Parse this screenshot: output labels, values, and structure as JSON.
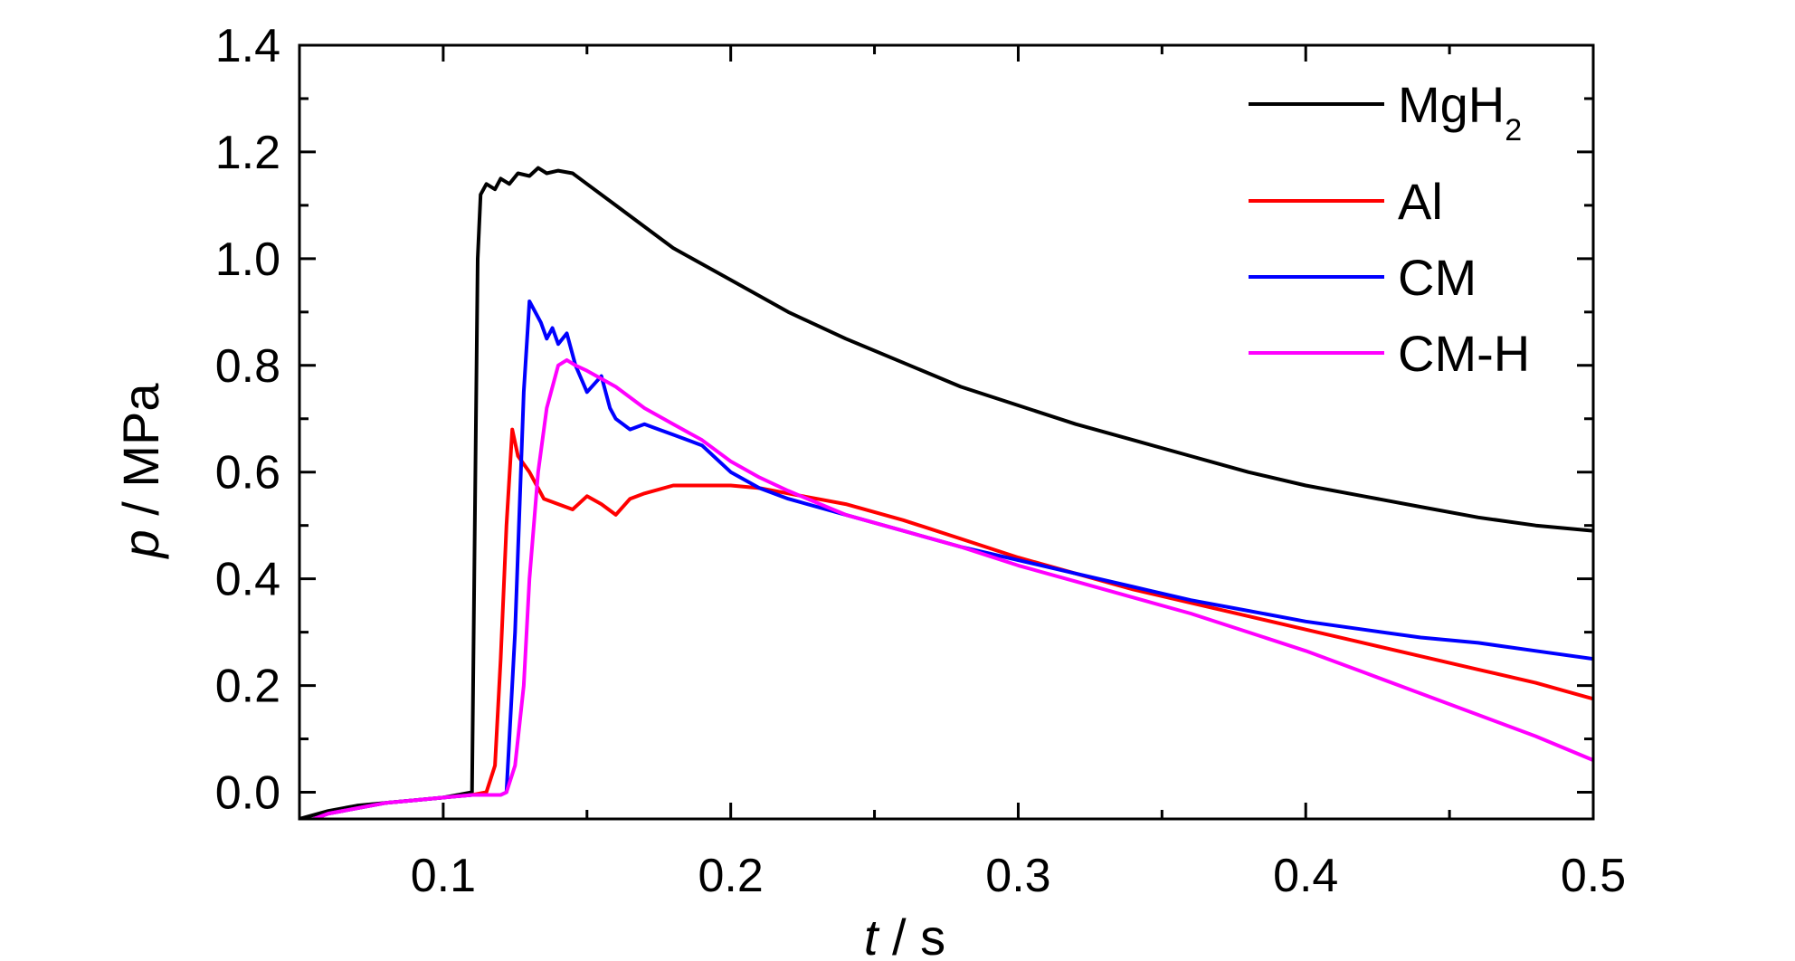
{
  "chart_data": {
    "type": "line",
    "title": "",
    "xlabel": {
      "var": "t",
      "unit": " / s"
    },
    "ylabel": {
      "var": "p",
      "unit": " / MPa"
    },
    "xlim": [
      0.05,
      0.5
    ],
    "ylim": [
      -0.05,
      1.4
    ],
    "xticks": [
      "0.1",
      "0.2",
      "0.3",
      "0.4",
      "0.5"
    ],
    "yticks": [
      "0.0",
      "0.2",
      "0.4",
      "0.6",
      "0.8",
      "1.0",
      "1.2",
      "1.4"
    ],
    "grid": false,
    "legend_position": "top-right",
    "series": [
      {
        "name": "MgH",
        "name_sub": "2",
        "color": "#000000",
        "x": [
          0.05,
          0.06,
          0.07,
          0.08,
          0.09,
          0.1,
          0.105,
          0.11,
          0.111,
          0.112,
          0.113,
          0.115,
          0.118,
          0.12,
          0.123,
          0.126,
          0.13,
          0.133,
          0.136,
          0.14,
          0.145,
          0.15,
          0.16,
          0.17,
          0.18,
          0.19,
          0.2,
          0.22,
          0.24,
          0.26,
          0.28,
          0.3,
          0.32,
          0.34,
          0.36,
          0.38,
          0.4,
          0.42,
          0.44,
          0.46,
          0.48,
          0.5
        ],
        "y": [
          -0.05,
          -0.035,
          -0.025,
          -0.02,
          -0.015,
          -0.01,
          -0.005,
          0.0,
          0.5,
          1.0,
          1.12,
          1.14,
          1.13,
          1.15,
          1.14,
          1.16,
          1.155,
          1.17,
          1.16,
          1.165,
          1.16,
          1.14,
          1.1,
          1.06,
          1.02,
          0.99,
          0.96,
          0.9,
          0.85,
          0.805,
          0.76,
          0.725,
          0.69,
          0.66,
          0.63,
          0.6,
          0.575,
          0.555,
          0.535,
          0.515,
          0.5,
          0.49
        ]
      },
      {
        "name": "Al",
        "color": "#ff0000",
        "x": [
          0.05,
          0.06,
          0.07,
          0.08,
          0.09,
          0.1,
          0.11,
          0.115,
          0.118,
          0.12,
          0.122,
          0.124,
          0.126,
          0.13,
          0.135,
          0.14,
          0.145,
          0.15,
          0.155,
          0.16,
          0.165,
          0.17,
          0.18,
          0.19,
          0.2,
          0.21,
          0.22,
          0.23,
          0.24,
          0.26,
          0.28,
          0.3,
          0.32,
          0.34,
          0.36,
          0.38,
          0.4,
          0.42,
          0.44,
          0.46,
          0.48,
          0.5
        ],
        "y": [
          -0.06,
          -0.04,
          -0.03,
          -0.02,
          -0.015,
          -0.01,
          -0.005,
          0.0,
          0.05,
          0.25,
          0.5,
          0.68,
          0.63,
          0.6,
          0.55,
          0.54,
          0.53,
          0.555,
          0.54,
          0.52,
          0.55,
          0.56,
          0.575,
          0.575,
          0.575,
          0.57,
          0.56,
          0.55,
          0.54,
          0.51,
          0.475,
          0.44,
          0.41,
          0.38,
          0.355,
          0.33,
          0.305,
          0.28,
          0.255,
          0.23,
          0.205,
          0.175
        ]
      },
      {
        "name": "CM",
        "color": "#0000ff",
        "x": [
          0.05,
          0.06,
          0.07,
          0.08,
          0.09,
          0.1,
          0.11,
          0.115,
          0.12,
          0.122,
          0.125,
          0.128,
          0.13,
          0.132,
          0.134,
          0.136,
          0.138,
          0.14,
          0.143,
          0.146,
          0.15,
          0.155,
          0.158,
          0.16,
          0.165,
          0.17,
          0.175,
          0.18,
          0.19,
          0.2,
          0.21,
          0.22,
          0.24,
          0.26,
          0.28,
          0.3,
          0.32,
          0.34,
          0.36,
          0.38,
          0.4,
          0.42,
          0.44,
          0.46,
          0.48,
          0.5
        ],
        "y": [
          -0.06,
          -0.04,
          -0.03,
          -0.02,
          -0.015,
          -0.01,
          -0.005,
          -0.005,
          -0.005,
          0.0,
          0.3,
          0.75,
          0.92,
          0.9,
          0.88,
          0.85,
          0.87,
          0.84,
          0.86,
          0.8,
          0.75,
          0.78,
          0.72,
          0.7,
          0.68,
          0.69,
          0.68,
          0.67,
          0.65,
          0.6,
          0.57,
          0.55,
          0.52,
          0.49,
          0.46,
          0.435,
          0.41,
          0.385,
          0.36,
          0.34,
          0.32,
          0.305,
          0.29,
          0.28,
          0.265,
          0.25
        ]
      },
      {
        "name": "CM-H",
        "color": "#ff00ff",
        "x": [
          0.05,
          0.06,
          0.07,
          0.08,
          0.09,
          0.1,
          0.11,
          0.12,
          0.122,
          0.125,
          0.128,
          0.13,
          0.133,
          0.136,
          0.14,
          0.143,
          0.146,
          0.15,
          0.16,
          0.17,
          0.18,
          0.19,
          0.2,
          0.21,
          0.22,
          0.24,
          0.26,
          0.28,
          0.3,
          0.32,
          0.34,
          0.36,
          0.38,
          0.4,
          0.42,
          0.44,
          0.46,
          0.48,
          0.5
        ],
        "y": [
          -0.06,
          -0.04,
          -0.03,
          -0.02,
          -0.015,
          -0.01,
          -0.005,
          -0.005,
          0.0,
          0.05,
          0.2,
          0.4,
          0.6,
          0.72,
          0.8,
          0.81,
          0.8,
          0.79,
          0.76,
          0.72,
          0.69,
          0.66,
          0.62,
          0.59,
          0.565,
          0.52,
          0.49,
          0.46,
          0.425,
          0.395,
          0.365,
          0.335,
          0.3,
          0.265,
          0.225,
          0.185,
          0.145,
          0.105,
          0.06
        ]
      }
    ]
  }
}
